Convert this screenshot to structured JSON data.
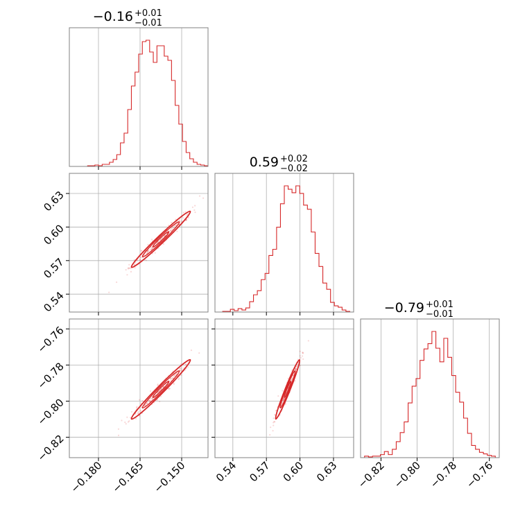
{
  "colors": {
    "series": "#d62728",
    "frame": "#808080",
    "grid": "#b0b0b0"
  },
  "chart_data": {
    "type": "corner",
    "parameters": [
      {
        "title": "−0.16",
        "upper": "+0.01",
        "lower": "−0.01",
        "range": [
          -0.1905,
          -0.1405
        ],
        "ticks": [
          -0.18,
          -0.165,
          -0.15
        ],
        "tick_labels": [
          "−0.180",
          "−0.165",
          "−0.150"
        ],
        "hist_bins": [
          0,
          0,
          0,
          0,
          0,
          1,
          1,
          2,
          1,
          3,
          3,
          6,
          10,
          17,
          34,
          48,
          82,
          116,
          136,
          162,
          180,
          182,
          165,
          150,
          174,
          174,
          159,
          153,
          124,
          88,
          61,
          36,
          20,
          11,
          6,
          3,
          2,
          1
        ],
        "hist_max": 182
      },
      {
        "title": "0.59",
        "upper": "+0.02",
        "lower": "−0.02",
        "range": [
          0.524,
          0.648
        ],
        "ticks": [
          0.54,
          0.57,
          0.6,
          0.63
        ],
        "tick_labels": [
          "0.54",
          "0.57",
          "0.60",
          "0.63"
        ],
        "hist_bins": [
          0,
          0,
          1,
          1,
          4,
          2,
          5,
          3,
          6,
          15,
          25,
          31,
          47,
          56,
          82,
          91,
          123,
          157,
          183,
          178,
          173,
          183,
          172,
          155,
          149,
          116,
          85,
          66,
          42,
          33,
          14,
          9,
          7,
          3,
          1,
          0
        ],
        "hist_max": 183
      },
      {
        "title": "−0.79",
        "upper": "+0.01",
        "lower": "−0.01",
        "range": [
          -0.8313,
          -0.7545
        ],
        "ticks": [
          -0.82,
          -0.8,
          -0.78,
          -0.76
        ],
        "tick_labels": [
          "−0.82",
          "−0.80",
          "−0.78",
          "−0.76"
        ],
        "hist_bins": [
          0,
          2,
          1,
          2,
          2,
          4,
          8,
          4,
          11,
          21,
          33,
          47,
          72,
          94,
          104,
          128,
          143,
          150,
          166,
          144,
          126,
          157,
          132,
          108,
          86,
          73,
          52,
          32,
          16,
          11,
          7,
          5,
          3,
          2,
          0
        ],
        "hist_max": 166
      }
    ],
    "pairs": [
      {
        "x": 0,
        "y": 1,
        "x_center": -0.1575,
        "y_center": 0.589
      },
      {
        "x": 0,
        "y": 2,
        "x_center": -0.1575,
        "y_center": -0.7935
      },
      {
        "x": 1,
        "y": 2,
        "x_center": 0.589,
        "y_center": -0.7935
      }
    ]
  }
}
